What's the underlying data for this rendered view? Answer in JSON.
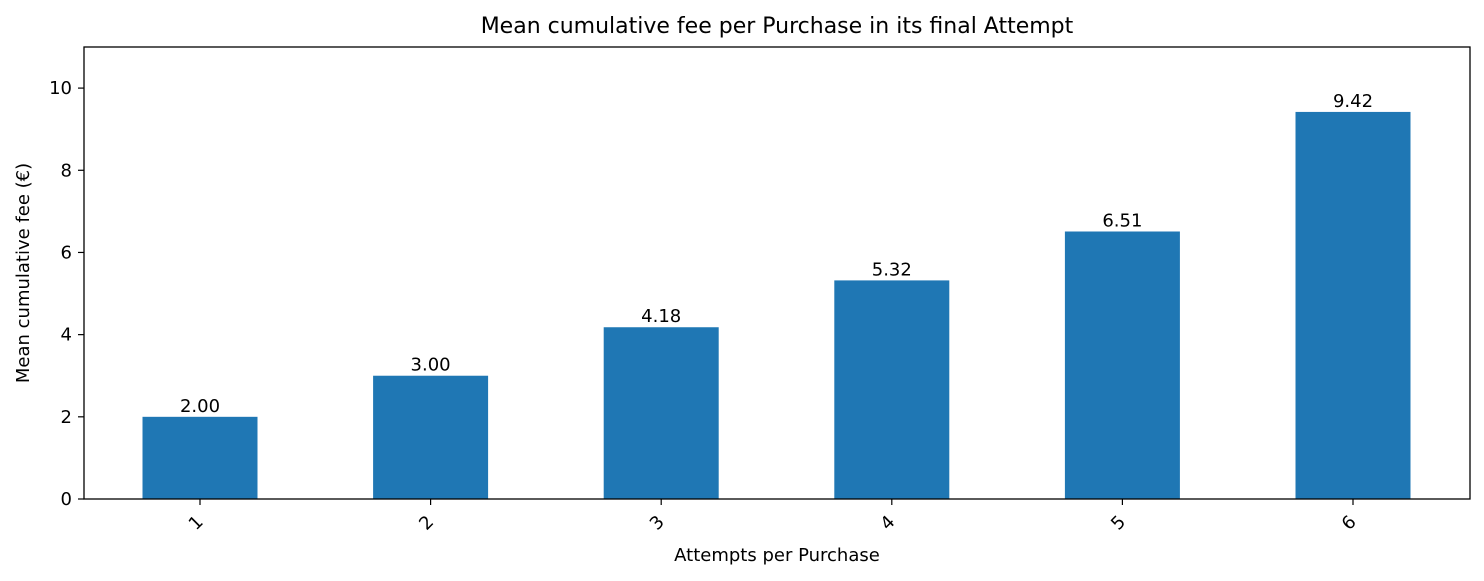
{
  "chart_data": {
    "type": "bar",
    "title": "Mean cumulative fee per Purchase in its final Attempt",
    "xlabel": "Attempts per Purchase",
    "ylabel": "Mean cumulative fee (€)",
    "categories": [
      "1",
      "2",
      "3",
      "4",
      "5",
      "6"
    ],
    "values": [
      2.0,
      3.0,
      4.18,
      5.32,
      6.51,
      9.42
    ],
    "data_labels": [
      "2.00",
      "3.00",
      "4.18",
      "5.32",
      "6.51",
      "9.42"
    ],
    "ylim": [
      0,
      11
    ],
    "yticks": [
      0,
      2,
      4,
      6,
      8,
      10
    ],
    "ytick_labels": [
      "0",
      "2",
      "4",
      "6",
      "8",
      "10"
    ],
    "grid": false,
    "colors": {
      "bar": "#1f77b4"
    }
  }
}
